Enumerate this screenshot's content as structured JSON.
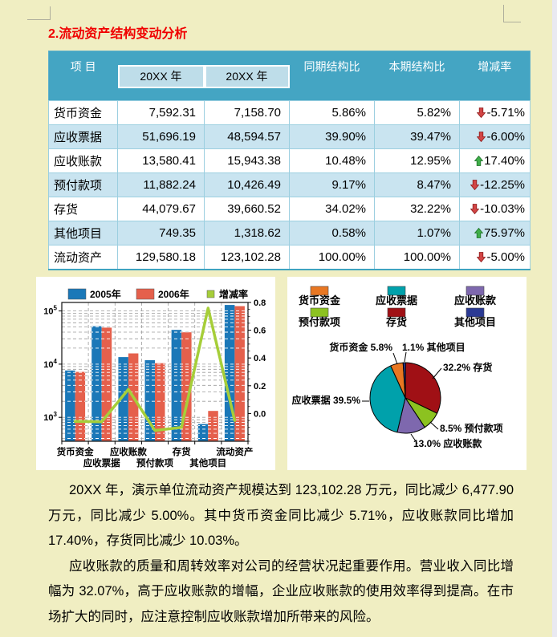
{
  "page": {
    "title": "2.流动资产结构变动分析",
    "background_color": "#F0EEC2"
  },
  "table": {
    "header": {
      "item": "项  目",
      "year1": "20XX 年",
      "year2": "20XX 年",
      "prev_ratio": "同期结构比",
      "cur_ratio": "本期结构比",
      "change_rate": "增减率"
    },
    "colors": {
      "header_bg": "#44A5C3",
      "subheader_bg": "#BEDDE9",
      "alt_row_bg": "#C9E4F0",
      "up_arrow": "#3FAE49",
      "down_arrow": "#D24545"
    },
    "rows": [
      {
        "name": "货币资金",
        "y1": "7,592.31",
        "y2": "7,158.70",
        "prev": "5.86%",
        "cur": "5.82%",
        "trend": "down",
        "change": "-5.71%"
      },
      {
        "name": "应收票据",
        "y1": "51,696.19",
        "y2": "48,594.57",
        "prev": "39.90%",
        "cur": "39.47%",
        "trend": "down",
        "change": "-6.00%"
      },
      {
        "name": "应收账款",
        "y1": "13,580.41",
        "y2": "15,943.38",
        "prev": "10.48%",
        "cur": "12.95%",
        "trend": "up",
        "change": "17.40%"
      },
      {
        "name": "预付款项",
        "y1": "11,882.24",
        "y2": "10,426.49",
        "prev": "9.17%",
        "cur": "8.47%",
        "trend": "down",
        "change": "-12.25%"
      },
      {
        "name": "存货",
        "y1": "44,079.67",
        "y2": "39,660.52",
        "prev": "34.02%",
        "cur": "32.22%",
        "trend": "down",
        "change": "-10.03%"
      },
      {
        "name": "其他项目",
        "y1": "749.35",
        "y2": "1,318.62",
        "prev": "0.58%",
        "cur": "1.07%",
        "trend": "up",
        "change": "75.97%"
      },
      {
        "name": "流动资产",
        "y1": "129,580.18",
        "y2": "123,102.28",
        "prev": "100.00%",
        "cur": "100.00%",
        "trend": "down",
        "change": "-5.00%"
      }
    ]
  },
  "chart_data": [
    {
      "type": "bar",
      "subtype": "bar-line-combo-log",
      "categories": [
        "货币资金",
        "应收票据",
        "应收账款",
        "预付款项",
        "存货",
        "其他项目",
        "流动资产"
      ],
      "series": [
        {
          "name": "2005年",
          "type": "bar",
          "color": "#1B78B8",
          "values": [
            7592.31,
            51696.19,
            13580.41,
            11882.24,
            44079.67,
            749.35,
            129580.18
          ]
        },
        {
          "name": "2006年",
          "type": "bar",
          "color": "#E5604C",
          "values": [
            7158.7,
            48594.57,
            15943.38,
            10426.49,
            39660.52,
            1318.62,
            123102.28
          ]
        },
        {
          "name": "增减率",
          "type": "line",
          "color": "#A6CE39",
          "values": [
            -0.0571,
            -0.06,
            0.174,
            -0.1225,
            -0.1003,
            0.7597,
            -0.05
          ]
        }
      ],
      "left_axis": {
        "scale": "log",
        "exponents": [
          3,
          4,
          5
        ],
        "min_log": 2.55,
        "max_log": 5.16
      },
      "right_axis": {
        "min": -0.2,
        "max": 0.8,
        "tick_labels": [
          "0.0",
          "0.2",
          "0.4",
          "0.6",
          "0.8"
        ],
        "minor_step": 0.05
      },
      "legend_position": "top",
      "grid": "dashed"
    },
    {
      "type": "pie",
      "legend": [
        {
          "label": "货币资金",
          "color": "#E87722"
        },
        {
          "label": "应收票据",
          "color": "#00A1AB"
        },
        {
          "label": "应收账款",
          "color": "#7E68AE"
        },
        {
          "label": "预付款项",
          "color": "#8CC220"
        },
        {
          "label": "存货",
          "color": "#A01015"
        },
        {
          "label": "其他项目",
          "color": "#2B3A94"
        }
      ],
      "slices": [
        {
          "label": "存货",
          "pct": 32.2,
          "color": "#A01015",
          "callout": "32.2% 存货"
        },
        {
          "label": "预付款项",
          "pct": 8.5,
          "color": "#8CC220",
          "callout": "8.5% 预付款项"
        },
        {
          "label": "应收账款",
          "pct": 13.0,
          "color": "#7E68AE",
          "callout": "13.0% 应收账款"
        },
        {
          "label": "应收票据",
          "pct": 39.5,
          "color": "#00A1AB",
          "callout": "应收票据 39.5%"
        },
        {
          "label": "货币资金",
          "pct": 5.8,
          "color": "#E87722",
          "callout": "货币资金 5.8%"
        },
        {
          "label": "其他项目",
          "pct": 1.1,
          "color": "#2B3A94",
          "callout": "1.1% 其他项目"
        }
      ],
      "start_angle_deg": 0,
      "direction": "clockwise"
    }
  ],
  "paragraphs": [
    {
      "text": "20XX 年，演示单位流动资产规模达到 123,102.28 万元，同比减少 6,477.90 万元，同比减少 5.00%。其中货币资金同比减少 5.71%，应收账款同比增加 17.40%，存货同比减少 10.03%。"
    },
    {
      "text": "应收账款的质量和周转效率对公司的经营状况起重要作用。营业收入同比增幅为 32.07%，高于应收账款的增幅，企业应收账款的使用效率得到提高。在市场扩大的同时，应注意控制应收账款增加所带来的风险。"
    }
  ]
}
